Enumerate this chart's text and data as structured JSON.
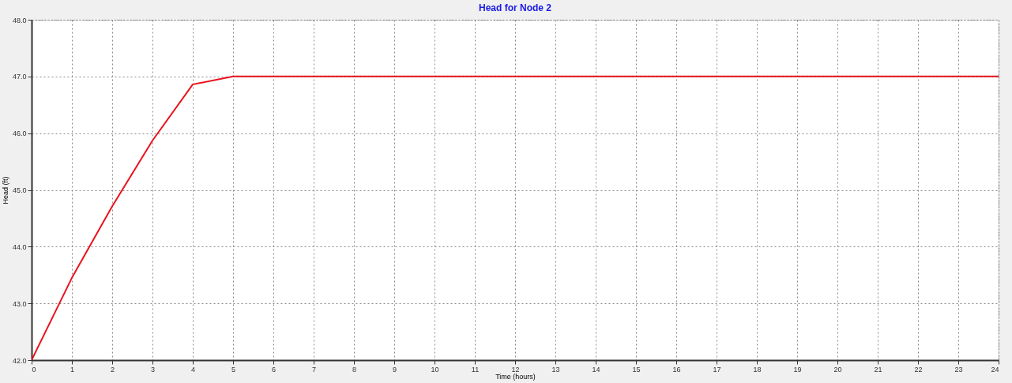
{
  "chart_data": {
    "type": "line",
    "title": "Head for Node 2",
    "xlabel": "Time (hours)",
    "ylabel": "Head (ft)",
    "x": [
      0,
      1,
      2,
      3,
      4,
      5,
      6,
      7,
      8,
      9,
      10,
      11,
      12,
      13,
      14,
      15,
      16,
      17,
      18,
      19,
      20,
      21,
      22,
      23,
      24
    ],
    "series": [
      {
        "color": "#e8141c",
        "values": [
          42.0,
          43.45,
          44.71,
          45.87,
          46.86,
          47.0,
          47.0,
          47.0,
          47.0,
          47.0,
          47.0,
          47.0,
          47.0,
          47.0,
          47.0,
          47.0,
          47.0,
          47.0,
          47.0,
          47.0,
          47.0,
          47.0,
          47.0,
          47.0,
          47.0
        ]
      }
    ],
    "xlim": [
      0,
      24
    ],
    "xticks": [
      0,
      1,
      2,
      3,
      4,
      5,
      6,
      7,
      8,
      9,
      10,
      11,
      12,
      13,
      14,
      15,
      16,
      17,
      18,
      19,
      20,
      21,
      22,
      23,
      24
    ],
    "ylim": [
      42,
      48
    ],
    "yticks": [
      {
        "value": 42,
        "label": "42.0"
      },
      {
        "value": 43,
        "label": "43.0"
      },
      {
        "value": 44,
        "label": "44.0"
      },
      {
        "value": 45,
        "label": "45.0"
      },
      {
        "value": 46,
        "label": "46.0"
      },
      {
        "value": 47,
        "label": "47.0"
      },
      {
        "value": 48,
        "label": "48.0"
      }
    ],
    "grid": true,
    "marker": "none",
    "line_style": "solid"
  }
}
